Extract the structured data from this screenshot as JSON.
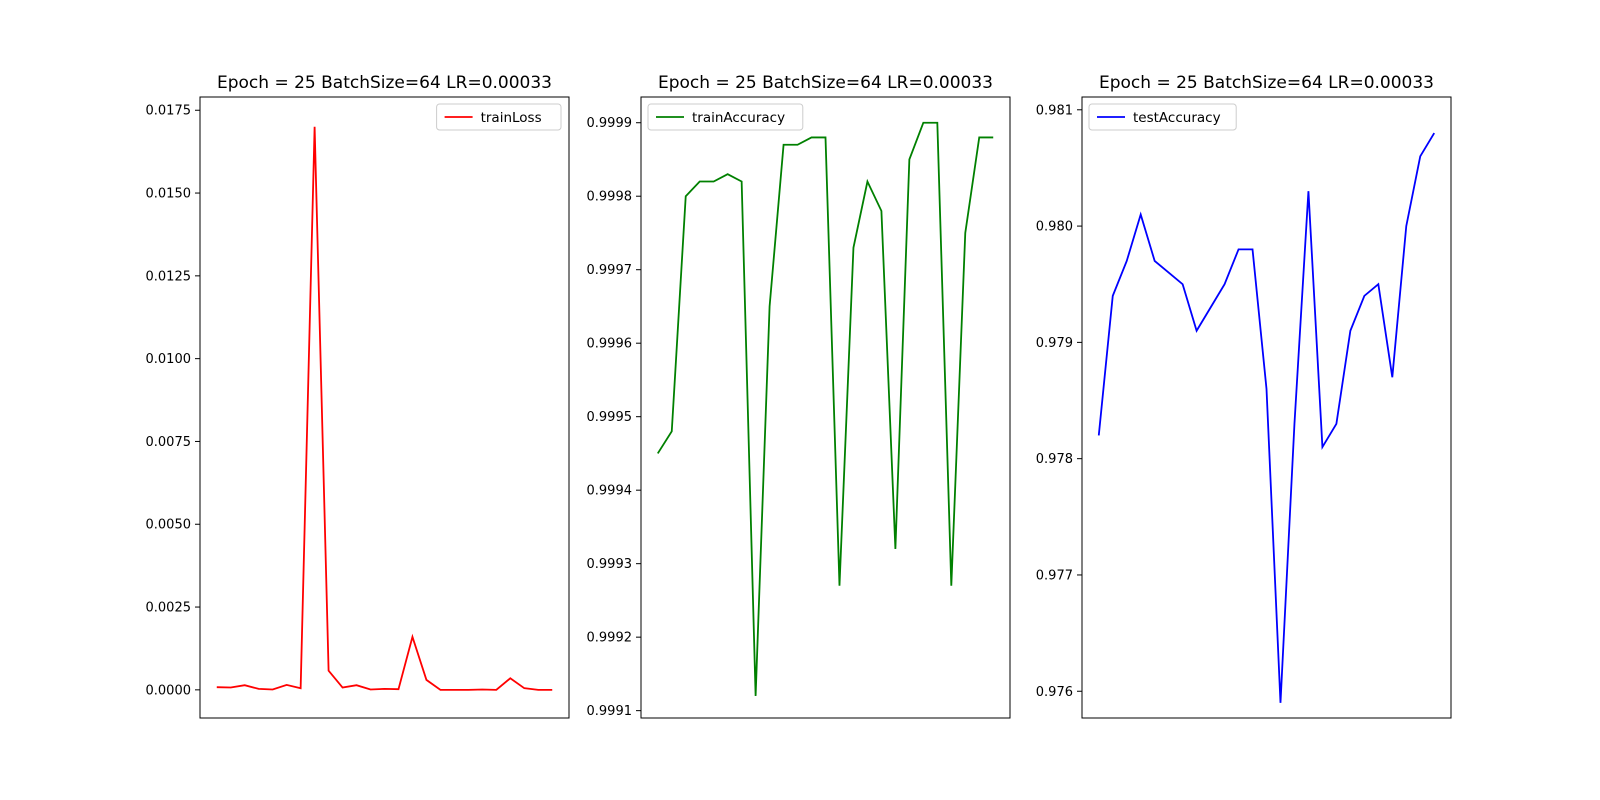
{
  "chart_data": [
    {
      "type": "line",
      "title": "Epoch = 25 BatchSize=64 LR=0.00033",
      "legend_position": "upper right",
      "xlim": [
        -1.2,
        25.2
      ],
      "ylim": [
        -0.00085,
        0.0179
      ],
      "yticks": [
        0.0,
        0.0025,
        0.005,
        0.0075,
        0.01,
        0.0125,
        0.015,
        0.0175
      ],
      "ytick_labels": [
        "0.0000",
        "0.0025",
        "0.0050",
        "0.0075",
        "0.0100",
        "0.0125",
        "0.0150",
        "0.0175"
      ],
      "show_xticks": false,
      "grid": false,
      "series": [
        {
          "name": "trainLoss",
          "color": "#ff0000",
          "x": [
            0,
            1,
            2,
            3,
            4,
            5,
            6,
            7,
            8,
            9,
            10,
            11,
            12,
            13,
            14,
            15,
            16,
            17,
            18,
            19,
            20,
            21,
            22,
            23,
            24
          ],
          "values": [
            8e-05,
            7e-05,
            0.00014,
            3e-05,
            1e-05,
            0.00015,
            5e-05,
            0.017,
            0.00058,
            7e-05,
            0.00014,
            1e-05,
            3e-05,
            2e-05,
            0.0016,
            0.0003,
            0.0,
            0.0,
            0.0,
            1e-05,
            0.0,
            0.00035,
            5e-05,
            0.0,
            0.0
          ]
        }
      ]
    },
    {
      "type": "line",
      "title": "Epoch = 25 BatchSize=64 LR=0.00033",
      "legend_position": "upper left",
      "xlim": [
        -1.2,
        25.2
      ],
      "ylim": [
        0.99909,
        0.999935
      ],
      "yticks": [
        0.9991,
        0.9992,
        0.9993,
        0.9994,
        0.9995,
        0.9996,
        0.9997,
        0.9998,
        0.9999
      ],
      "ytick_labels": [
        "0.9991",
        "0.9992",
        "0.9993",
        "0.9994",
        "0.9995",
        "0.9996",
        "0.9997",
        "0.9998",
        "0.9999"
      ],
      "show_xticks": false,
      "grid": false,
      "series": [
        {
          "name": "trainAccuracy",
          "color": "#008000",
          "x": [
            0,
            1,
            2,
            3,
            4,
            5,
            6,
            7,
            8,
            9,
            10,
            11,
            12,
            13,
            14,
            15,
            16,
            17,
            18,
            19,
            20,
            21,
            22,
            23,
            24
          ],
          "values": [
            0.99945,
            0.99948,
            0.9998,
            0.99982,
            0.99982,
            0.99983,
            0.99982,
            0.99912,
            0.99965,
            0.99987,
            0.99987,
            0.99988,
            0.99988,
            0.99927,
            0.99973,
            0.99982,
            0.99978,
            0.99932,
            0.99985,
            0.9999,
            0.9999,
            0.99927,
            0.99975,
            0.99988,
            0.99988
          ]
        }
      ]
    },
    {
      "type": "line",
      "title": "Epoch = 25 BatchSize=64 LR=0.00033",
      "legend_position": "upper left",
      "xlim": [
        -1.2,
        25.2
      ],
      "ylim": [
        0.97577,
        0.98111
      ],
      "yticks": [
        0.976,
        0.977,
        0.978,
        0.979,
        0.98,
        0.981
      ],
      "ytick_labels": [
        "0.976",
        "0.977",
        "0.978",
        "0.979",
        "0.980",
        "0.981"
      ],
      "show_xticks": false,
      "grid": false,
      "series": [
        {
          "name": "testAccuracy",
          "color": "#0000ff",
          "x": [
            0,
            1,
            2,
            3,
            4,
            5,
            6,
            7,
            8,
            9,
            10,
            11,
            12,
            13,
            14,
            15,
            16,
            17,
            18,
            19,
            20,
            21,
            22,
            23,
            24
          ],
          "values": [
            0.9782,
            0.9794,
            0.9797,
            0.9801,
            0.9797,
            0.9796,
            0.9795,
            0.9791,
            0.9793,
            0.9795,
            0.9798,
            0.9798,
            0.9786,
            0.9759,
            0.9783,
            0.9803,
            0.9781,
            0.9783,
            0.9791,
            0.9794,
            0.9795,
            0.9787,
            0.98,
            0.9806,
            0.9808
          ]
        }
      ]
    }
  ]
}
